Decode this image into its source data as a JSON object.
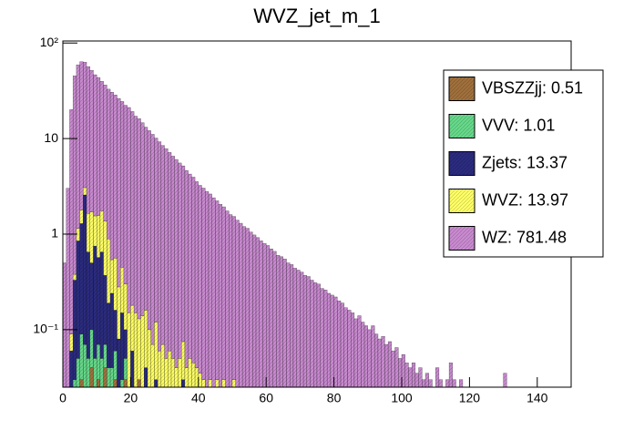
{
  "chart_data": {
    "type": "stacked_histogram",
    "title": "WVZ_jet_m_1",
    "bins": [
      0,
      1,
      2,
      3,
      4,
      5,
      6,
      7,
      8,
      9,
      10,
      11,
      12,
      13,
      14,
      15,
      16,
      17,
      18,
      19,
      20,
      21,
      22,
      23,
      24,
      25,
      26,
      27,
      28,
      29,
      30,
      31,
      32,
      33,
      34,
      35,
      36,
      37,
      38,
      39,
      40,
      41,
      42,
      43,
      44,
      45,
      46,
      47,
      48,
      49,
      50,
      51,
      52,
      53,
      54,
      55,
      56,
      57,
      58,
      59,
      60,
      61,
      62,
      63,
      64,
      65,
      66,
      67,
      68,
      69,
      70,
      71,
      72,
      73,
      74,
      75,
      76,
      77,
      78,
      79,
      80,
      81,
      82,
      83,
      84,
      85,
      86,
      87,
      88,
      89,
      90,
      91,
      92,
      93,
      94,
      95,
      96,
      97,
      98,
      99,
      100,
      101,
      102,
      103,
      104,
      105,
      106,
      107,
      108,
      109,
      110,
      111,
      112,
      113,
      114,
      115,
      116,
      117,
      118,
      119,
      120,
      121,
      122,
      123,
      124,
      125,
      126,
      127,
      128,
      129,
      130,
      131,
      132,
      133,
      134,
      135,
      136,
      137,
      138,
      139,
      140,
      141,
      142,
      143,
      144,
      145,
      146,
      147,
      148,
      149,
      150
    ],
    "series": [
      {
        "name": "VBSZZjj: 0.51",
        "color": "#a0703c",
        "values": [
          0,
          0,
          0,
          0,
          0,
          0.03,
          0,
          0,
          0.04,
          0,
          0.03,
          0,
          0.04,
          0,
          0,
          0.03,
          0,
          0,
          0.03,
          0,
          0,
          0,
          0.03,
          0,
          0,
          0,
          0,
          0,
          0,
          0,
          0,
          0,
          0,
          0,
          0,
          0,
          0,
          0,
          0,
          0,
          0,
          0,
          0,
          0,
          0,
          0,
          0,
          0,
          0,
          0,
          0,
          0,
          0,
          0,
          0,
          0,
          0,
          0,
          0,
          0,
          0,
          0,
          0,
          0,
          0,
          0,
          0,
          0,
          0,
          0,
          0,
          0,
          0,
          0,
          0,
          0,
          0,
          0,
          0,
          0,
          0,
          0,
          0,
          0,
          0,
          0,
          0,
          0,
          0,
          0,
          0,
          0,
          0,
          0,
          0,
          0,
          0,
          0,
          0,
          0,
          0,
          0,
          0,
          0,
          0,
          0,
          0,
          0,
          0,
          0,
          0,
          0,
          0,
          0,
          0,
          0,
          0,
          0,
          0,
          0,
          0,
          0,
          0,
          0,
          0,
          0,
          0,
          0,
          0,
          0,
          0,
          0,
          0,
          0,
          0,
          0,
          0,
          0,
          0,
          0,
          0,
          0,
          0,
          0,
          0,
          0,
          0,
          0,
          0,
          0
        ]
      },
      {
        "name": "VVV: 1.01",
        "color": "#66d98a",
        "values": [
          0,
          0,
          0.01,
          0.03,
          0.05,
          0.06,
          0.07,
          0.05,
          0.06,
          0.05,
          0.04,
          0.05,
          0.03,
          0.04,
          0.04,
          0.03,
          0.02,
          0.03,
          0.02,
          0,
          0.02,
          0,
          0,
          0,
          0,
          0,
          0,
          0,
          0,
          0,
          0,
          0,
          0,
          0,
          0,
          0,
          0,
          0,
          0,
          0,
          0,
          0,
          0,
          0,
          0,
          0,
          0,
          0,
          0,
          0,
          0,
          0,
          0,
          0,
          0,
          0,
          0,
          0,
          0,
          0,
          0,
          0,
          0,
          0,
          0,
          0,
          0,
          0,
          0,
          0,
          0,
          0,
          0,
          0,
          0,
          0,
          0,
          0,
          0,
          0,
          0,
          0,
          0,
          0,
          0,
          0,
          0,
          0,
          0,
          0,
          0,
          0,
          0,
          0,
          0,
          0,
          0,
          0,
          0,
          0,
          0,
          0,
          0,
          0,
          0,
          0,
          0,
          0,
          0,
          0,
          0,
          0,
          0,
          0,
          0,
          0,
          0,
          0,
          0,
          0,
          0,
          0,
          0,
          0,
          0,
          0,
          0,
          0,
          0,
          0,
          0,
          0,
          0,
          0,
          0,
          0,
          0,
          0,
          0,
          0,
          0,
          0,
          0,
          0,
          0,
          0,
          0,
          0,
          0,
          0
        ]
      },
      {
        "name": "Zjets: 13.37",
        "color": "#2b2b80",
        "values": [
          0,
          0,
          0.05,
          0.3,
          0.8,
          1.2,
          2.5,
          0.6,
          0.4,
          0.7,
          0.5,
          0.6,
          0.3,
          0.15,
          0.2,
          0.1,
          0.06,
          0.12,
          0.05,
          0,
          0.04,
          0,
          0,
          0,
          0.04,
          0,
          0,
          0.03,
          0,
          0,
          0,
          0,
          0,
          0,
          0,
          0.03,
          0,
          0,
          0,
          0,
          0,
          0,
          0,
          0,
          0,
          0,
          0,
          0,
          0,
          0,
          0,
          0,
          0,
          0,
          0,
          0,
          0,
          0,
          0,
          0,
          0,
          0,
          0,
          0,
          0,
          0,
          0,
          0,
          0,
          0,
          0,
          0,
          0,
          0,
          0,
          0,
          0,
          0,
          0,
          0,
          0,
          0,
          0,
          0,
          0,
          0,
          0,
          0,
          0,
          0,
          0,
          0,
          0,
          0,
          0,
          0,
          0,
          0,
          0,
          0,
          0,
          0,
          0,
          0,
          0,
          0,
          0,
          0,
          0,
          0,
          0,
          0,
          0,
          0,
          0,
          0,
          0,
          0,
          0,
          0,
          0,
          0,
          0,
          0,
          0,
          0,
          0,
          0,
          0,
          0,
          0,
          0,
          0,
          0,
          0,
          0,
          0,
          0,
          0,
          0,
          0,
          0,
          0,
          0,
          0,
          0,
          0,
          0,
          0,
          0
        ]
      },
      {
        "name": "WVZ: 13.97",
        "color": "#ffff66",
        "values": [
          0,
          0.02,
          0.03,
          0.05,
          0.3,
          0.5,
          0.5,
          1.0,
          1.2,
          0.8,
          1.0,
          1.1,
          1.0,
          0.7,
          0.3,
          0.4,
          0.2,
          0.3,
          0.2,
          0.15,
          0.12,
          0.15,
          0.1,
          0.14,
          0.12,
          0.1,
          0.07,
          0.09,
          0.06,
          0.07,
          0.05,
          0.06,
          0.05,
          0.04,
          0.05,
          0.045,
          0.04,
          0.05,
          0.045,
          0.04,
          0.035,
          0.03,
          0,
          0.03,
          0,
          0.03,
          0,
          0.03,
          0,
          0,
          0.03,
          0,
          0,
          0,
          0,
          0,
          0,
          0,
          0,
          0,
          0,
          0,
          0,
          0,
          0,
          0,
          0,
          0,
          0,
          0,
          0,
          0,
          0,
          0,
          0,
          0,
          0,
          0,
          0,
          0,
          0,
          0,
          0,
          0,
          0,
          0,
          0,
          0,
          0,
          0,
          0,
          0,
          0,
          0,
          0,
          0,
          0,
          0,
          0,
          0,
          0,
          0,
          0,
          0,
          0,
          0,
          0,
          0,
          0,
          0,
          0,
          0,
          0,
          0,
          0,
          0,
          0,
          0,
          0,
          0,
          0,
          0,
          0,
          0,
          0,
          0,
          0,
          0,
          0,
          0,
          0,
          0,
          0,
          0,
          0,
          0,
          0,
          0,
          0,
          0,
          0,
          0,
          0,
          0,
          0,
          0,
          0,
          0,
          0,
          0
        ]
      },
      {
        "name": "WZ: 781.48",
        "color": "#c98ad0",
        "values": [
          0.5,
          3,
          20,
          45,
          58,
          62,
          60,
          55,
          50,
          45,
          42,
          38,
          35,
          32,
          30,
          28,
          26,
          24,
          22,
          21,
          19,
          17,
          16,
          14.5,
          13,
          12,
          11,
          10,
          9.2,
          8.4,
          7.8,
          7.1,
          6.5,
          6.0,
          5.5,
          5.1,
          4.6,
          4.2,
          3.9,
          3.5,
          3.2,
          3.0,
          2.8,
          2.6,
          2.4,
          2.2,
          2.05,
          1.9,
          1.75,
          1.6,
          1.5,
          1.4,
          1.3,
          1.2,
          1.15,
          1.05,
          0.98,
          0.92,
          0.85,
          0.8,
          0.76,
          0.7,
          0.66,
          0.6,
          0.58,
          0.55,
          0.5,
          0.48,
          0.44,
          0.42,
          0.4,
          0.37,
          0.36,
          0.33,
          0.31,
          0.3,
          0.27,
          0.26,
          0.24,
          0.23,
          0.22,
          0.2,
          0.19,
          0.17,
          0.16,
          0.15,
          0.13,
          0.14,
          0.12,
          0.11,
          0.1,
          0.11,
          0.09,
          0.08,
          0.085,
          0.07,
          0.075,
          0.06,
          0.065,
          0.05,
          0.055,
          0.045,
          0.04,
          0.045,
          0.035,
          0.04,
          0.03,
          0.035,
          0.03,
          0,
          0.04,
          0.03,
          0,
          0.03,
          0.045,
          0.03,
          0,
          0.03,
          0,
          0,
          0,
          0,
          0,
          0,
          0,
          0,
          0,
          0,
          0,
          0,
          0.035,
          0,
          0,
          0,
          0,
          0,
          0,
          0,
          0,
          0,
          0,
          0,
          0,
          0,
          0,
          0,
          0,
          0,
          0,
          0
        ]
      }
    ],
    "xlim": [
      0,
      150
    ],
    "xticks": [
      0,
      20,
      40,
      60,
      80,
      100,
      120,
      140
    ],
    "ylim": [
      0.025,
      105
    ],
    "log_y": true,
    "yticks": [
      {
        "value": 0.1,
        "label": "10⁻¹"
      },
      1,
      10,
      {
        "value": 100,
        "label": "10²"
      }
    ],
    "legend": "top-right"
  }
}
